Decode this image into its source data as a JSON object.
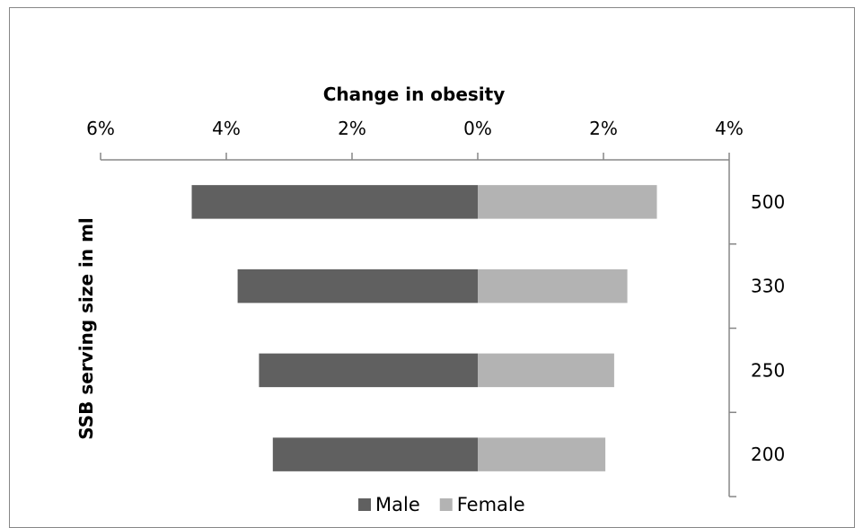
{
  "chart_data": {
    "type": "bar",
    "orientation": "horizontal",
    "stacked": true,
    "title": "",
    "xlabel": "Change in obesity",
    "ylabel": "SSB serving size in ml",
    "x_axis_position": "top",
    "y_axis_position": "right",
    "x_ticks": [
      "6%",
      "4%",
      "2%",
      "0%",
      "2%",
      "4%"
    ],
    "x_tick_values": [
      -6,
      -4,
      -2,
      0,
      2,
      4
    ],
    "xlim": [
      -6,
      4
    ],
    "categories": [
      "500",
      "330",
      "250",
      "200"
    ],
    "series": [
      {
        "name": "Male",
        "color": "#606060",
        "values": [
          -4.55,
          -3.82,
          -3.48,
          -3.26
        ]
      },
      {
        "name": "Female",
        "color": "#b3b3b3",
        "values": [
          2.85,
          2.38,
          2.17,
          2.03
        ]
      }
    ],
    "legend_position": "bottom",
    "grid": false
  }
}
